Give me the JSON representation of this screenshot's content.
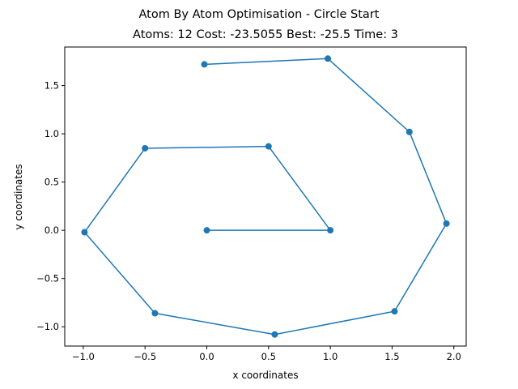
{
  "chart_data": {
    "type": "line",
    "title": "Atom By Atom Optimisation - Circle Start",
    "subtitle": "Atoms: 12 Cost: -23.5055 Best: -25.5 Time: 3",
    "xlabel": "x coordinates",
    "ylabel": "y coordinates",
    "xlim": [
      -1.15,
      2.1
    ],
    "ylim": [
      -1.2,
      1.9
    ],
    "xticks": [
      -1.0,
      -0.5,
      0.0,
      0.5,
      1.0,
      1.5,
      2.0
    ],
    "xtick_labels": [
      "−1.0",
      "−0.5",
      "0.0",
      "0.5",
      "1.0",
      "1.5",
      "2.0"
    ],
    "yticks": [
      -1.0,
      -0.5,
      0.0,
      0.5,
      1.0,
      1.5
    ],
    "ytick_labels": [
      "−1.0",
      "−0.5",
      "0.0",
      "0.5",
      "1.0",
      "1.5"
    ],
    "grid": false,
    "marker": "circle",
    "color": "#1f77b4",
    "x": [
      0.0,
      1.0,
      0.5,
      -0.5,
      -0.99,
      -0.42,
      0.55,
      1.52,
      1.94,
      1.64,
      0.98,
      -0.02
    ],
    "y": [
      0.0,
      0.0,
      0.87,
      0.85,
      -0.02,
      -0.86,
      -1.08,
      -0.84,
      0.07,
      1.02,
      1.78,
      1.72
    ]
  }
}
